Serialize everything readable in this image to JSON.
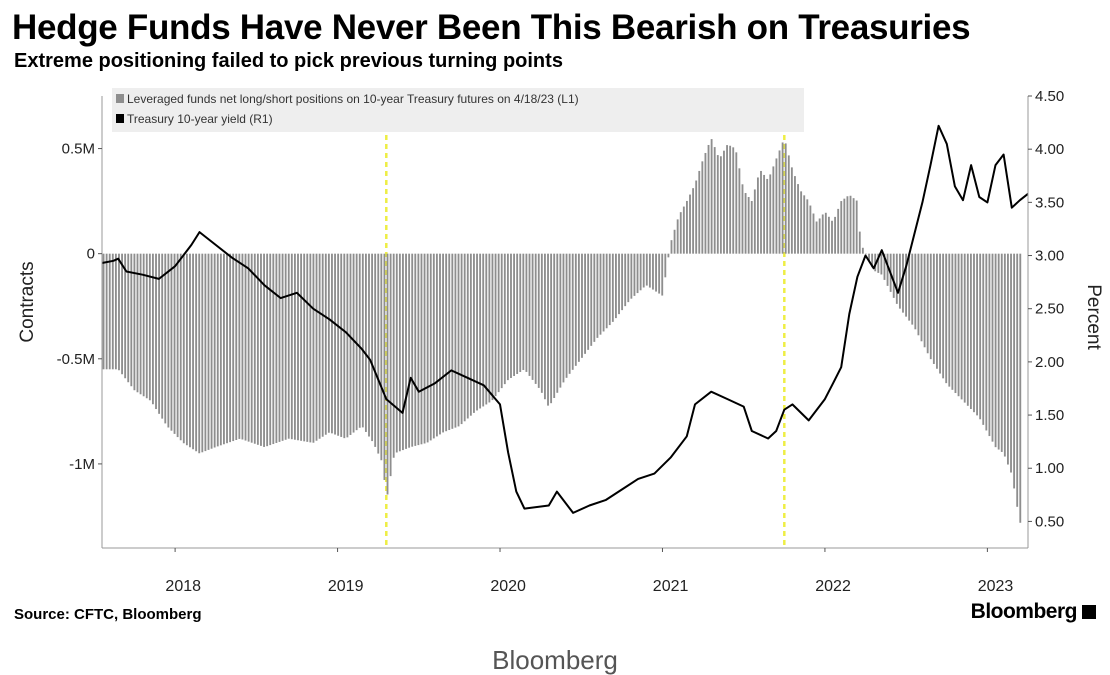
{
  "title": "Hedge Funds Have Never Been This Bearish on Treasuries",
  "subtitle": "Extreme positioning failed to pick previous turning points",
  "source": "Source: CFTC, Bloomberg",
  "brand": "Bloomberg",
  "footer_brand": "Bloomberg",
  "colors": {
    "bars": "#8e8e8e",
    "line": "#000000",
    "highlight": "#eeee44",
    "legend_bg": "#eeeeee",
    "grid": "#bbbbbb"
  },
  "chart_data": {
    "type": "bar+line",
    "title": "Hedge Funds Have Never Been This Bearish on Treasuries",
    "subtitle": "Extreme positioning failed to pick previous turning points",
    "legend_position": "top-left",
    "grid": false,
    "x_ticks": [
      "2018",
      "2019",
      "2020",
      "2021",
      "2022",
      "2023"
    ],
    "x_tick_dates": [
      2018.0,
      2019.0,
      2020.0,
      2021.0,
      2022.0,
      2023.0
    ],
    "x_range": [
      2017.55,
      2023.25
    ],
    "highlight_dates": [
      2019.3,
      2021.75
    ],
    "left_axis": {
      "label": "Contracts",
      "min": -1.4,
      "max": 0.75,
      "ticks": [
        0.5,
        0,
        -0.5,
        -1
      ],
      "tick_labels": [
        "0.5M",
        "0",
        "-0.5M",
        "-1M"
      ]
    },
    "right_axis": {
      "label": "Percent",
      "min": 0.25,
      "max": 4.5,
      "ticks": [
        4.5,
        4.0,
        3.5,
        3.0,
        2.5,
        2.0,
        1.5,
        1.0,
        0.5
      ],
      "tick_labels": [
        "4.50",
        "4.00",
        "3.50",
        "3.00",
        "2.50",
        "2.00",
        "1.50",
        "1.00",
        "0.50"
      ]
    },
    "series": [
      {
        "name": "Leveraged funds net long/short positions on 10-year Treasury futures on 4/18/23 (L1)",
        "kind": "bar",
        "axis": "left",
        "unit": "million contracts",
        "points": [
          [
            2017.55,
            -0.55
          ],
          [
            2017.65,
            -0.55
          ],
          [
            2017.75,
            -0.65
          ],
          [
            2017.85,
            -0.7
          ],
          [
            2017.95,
            -0.82
          ],
          [
            2018.05,
            -0.9
          ],
          [
            2018.15,
            -0.95
          ],
          [
            2018.25,
            -0.92
          ],
          [
            2018.4,
            -0.88
          ],
          [
            2018.55,
            -0.92
          ],
          [
            2018.7,
            -0.88
          ],
          [
            2018.85,
            -0.9
          ],
          [
            2018.95,
            -0.85
          ],
          [
            2019.05,
            -0.88
          ],
          [
            2019.15,
            -0.82
          ],
          [
            2019.22,
            -0.9
          ],
          [
            2019.28,
            -1.0
          ],
          [
            2019.3,
            -1.18
          ],
          [
            2019.35,
            -0.95
          ],
          [
            2019.45,
            -0.92
          ],
          [
            2019.55,
            -0.9
          ],
          [
            2019.65,
            -0.85
          ],
          [
            2019.75,
            -0.82
          ],
          [
            2019.85,
            -0.75
          ],
          [
            2019.95,
            -0.7
          ],
          [
            2020.05,
            -0.6
          ],
          [
            2020.15,
            -0.55
          ],
          [
            2020.25,
            -0.65
          ],
          [
            2020.3,
            -0.73
          ],
          [
            2020.4,
            -0.6
          ],
          [
            2020.5,
            -0.5
          ],
          [
            2020.6,
            -0.4
          ],
          [
            2020.7,
            -0.32
          ],
          [
            2020.8,
            -0.22
          ],
          [
            2020.9,
            -0.15
          ],
          [
            2021.0,
            -0.2
          ],
          [
            2021.05,
            0.05
          ],
          [
            2021.1,
            0.18
          ],
          [
            2021.15,
            0.25
          ],
          [
            2021.2,
            0.33
          ],
          [
            2021.25,
            0.45
          ],
          [
            2021.3,
            0.55
          ],
          [
            2021.35,
            0.45
          ],
          [
            2021.4,
            0.52
          ],
          [
            2021.45,
            0.5
          ],
          [
            2021.5,
            0.3
          ],
          [
            2021.55,
            0.25
          ],
          [
            2021.6,
            0.4
          ],
          [
            2021.65,
            0.35
          ],
          [
            2021.7,
            0.45
          ],
          [
            2021.75,
            0.55
          ],
          [
            2021.8,
            0.4
          ],
          [
            2021.85,
            0.3
          ],
          [
            2021.9,
            0.25
          ],
          [
            2021.95,
            0.15
          ],
          [
            2022.0,
            0.2
          ],
          [
            2022.05,
            0.15
          ],
          [
            2022.1,
            0.25
          ],
          [
            2022.15,
            0.28
          ],
          [
            2022.2,
            0.25
          ],
          [
            2022.22,
            0.05
          ],
          [
            2022.3,
            -0.08
          ],
          [
            2022.35,
            -0.1
          ],
          [
            2022.45,
            -0.25
          ],
          [
            2022.55,
            -0.35
          ],
          [
            2022.65,
            -0.5
          ],
          [
            2022.75,
            -0.62
          ],
          [
            2022.85,
            -0.7
          ],
          [
            2022.95,
            -0.78
          ],
          [
            2023.0,
            -0.85
          ],
          [
            2023.05,
            -0.92
          ],
          [
            2023.1,
            -0.95
          ],
          [
            2023.15,
            -1.05
          ],
          [
            2023.2,
            -1.28
          ]
        ]
      },
      {
        "name": "Treasury 10-year yield (R1)",
        "kind": "line",
        "axis": "right",
        "unit": "percent",
        "points": [
          [
            2017.55,
            2.93
          ],
          [
            2017.62,
            2.95
          ],
          [
            2017.65,
            2.97
          ],
          [
            2017.7,
            2.85
          ],
          [
            2017.8,
            2.82
          ],
          [
            2017.9,
            2.78
          ],
          [
            2018.0,
            2.9
          ],
          [
            2018.1,
            3.1
          ],
          [
            2018.15,
            3.22
          ],
          [
            2018.25,
            3.1
          ],
          [
            2018.35,
            2.98
          ],
          [
            2018.45,
            2.88
          ],
          [
            2018.55,
            2.72
          ],
          [
            2018.65,
            2.6
          ],
          [
            2018.75,
            2.65
          ],
          [
            2018.85,
            2.5
          ],
          [
            2018.95,
            2.4
          ],
          [
            2019.05,
            2.28
          ],
          [
            2019.15,
            2.12
          ],
          [
            2019.2,
            2.02
          ],
          [
            2019.3,
            1.65
          ],
          [
            2019.4,
            1.52
          ],
          [
            2019.45,
            1.85
          ],
          [
            2019.5,
            1.72
          ],
          [
            2019.6,
            1.8
          ],
          [
            2019.7,
            1.92
          ],
          [
            2019.8,
            1.85
          ],
          [
            2019.9,
            1.78
          ],
          [
            2020.0,
            1.6
          ],
          [
            2020.05,
            1.15
          ],
          [
            2020.1,
            0.78
          ],
          [
            2020.15,
            0.62
          ],
          [
            2020.3,
            0.65
          ],
          [
            2020.35,
            0.78
          ],
          [
            2020.45,
            0.58
          ],
          [
            2020.55,
            0.65
          ],
          [
            2020.65,
            0.7
          ],
          [
            2020.75,
            0.8
          ],
          [
            2020.85,
            0.9
          ],
          [
            2020.95,
            0.95
          ],
          [
            2021.05,
            1.1
          ],
          [
            2021.15,
            1.3
          ],
          [
            2021.2,
            1.6
          ],
          [
            2021.3,
            1.72
          ],
          [
            2021.4,
            1.65
          ],
          [
            2021.5,
            1.58
          ],
          [
            2021.55,
            1.35
          ],
          [
            2021.65,
            1.28
          ],
          [
            2021.7,
            1.35
          ],
          [
            2021.75,
            1.55
          ],
          [
            2021.8,
            1.6
          ],
          [
            2021.9,
            1.45
          ],
          [
            2022.0,
            1.65
          ],
          [
            2022.05,
            1.8
          ],
          [
            2022.1,
            1.95
          ],
          [
            2022.15,
            2.45
          ],
          [
            2022.2,
            2.8
          ],
          [
            2022.25,
            3.0
          ],
          [
            2022.3,
            2.88
          ],
          [
            2022.35,
            3.05
          ],
          [
            2022.4,
            2.85
          ],
          [
            2022.45,
            2.65
          ],
          [
            2022.5,
            2.9
          ],
          [
            2022.55,
            3.2
          ],
          [
            2022.6,
            3.5
          ],
          [
            2022.65,
            3.85
          ],
          [
            2022.7,
            4.22
          ],
          [
            2022.75,
            4.05
          ],
          [
            2022.8,
            3.65
          ],
          [
            2022.85,
            3.52
          ],
          [
            2022.9,
            3.85
          ],
          [
            2022.95,
            3.55
          ],
          [
            2023.0,
            3.5
          ],
          [
            2023.05,
            3.85
          ],
          [
            2023.1,
            3.95
          ],
          [
            2023.15,
            3.45
          ],
          [
            2023.2,
            3.52
          ],
          [
            2023.25,
            3.58
          ]
        ]
      }
    ]
  }
}
